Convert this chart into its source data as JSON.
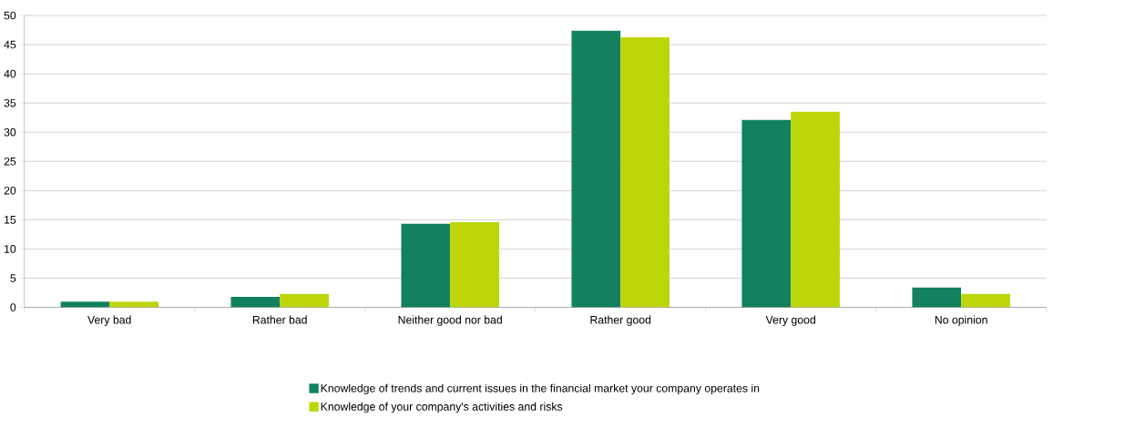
{
  "chart_data": {
    "type": "bar",
    "categories": [
      "Very bad",
      "Rather bad",
      "Neither good nor bad",
      "Rather good",
      "Very good",
      "No opinion"
    ],
    "series": [
      {
        "name": "Knowledge of trends and current issues in the financial market your company operates in",
        "color": "#138060",
        "values": [
          1.0,
          1.8,
          14.3,
          47.4,
          32.1,
          3.4
        ]
      },
      {
        "name": "Knowledge of your company's activities and risks",
        "color": "#bcd60a",
        "values": [
          1.0,
          2.3,
          14.6,
          46.3,
          33.5,
          2.3
        ]
      }
    ],
    "ylim": [
      0,
      50
    ],
    "yticks": [
      0,
      5,
      10,
      15,
      20,
      25,
      30,
      35,
      40,
      45,
      50
    ],
    "grid": "y",
    "legend": "bottom"
  }
}
